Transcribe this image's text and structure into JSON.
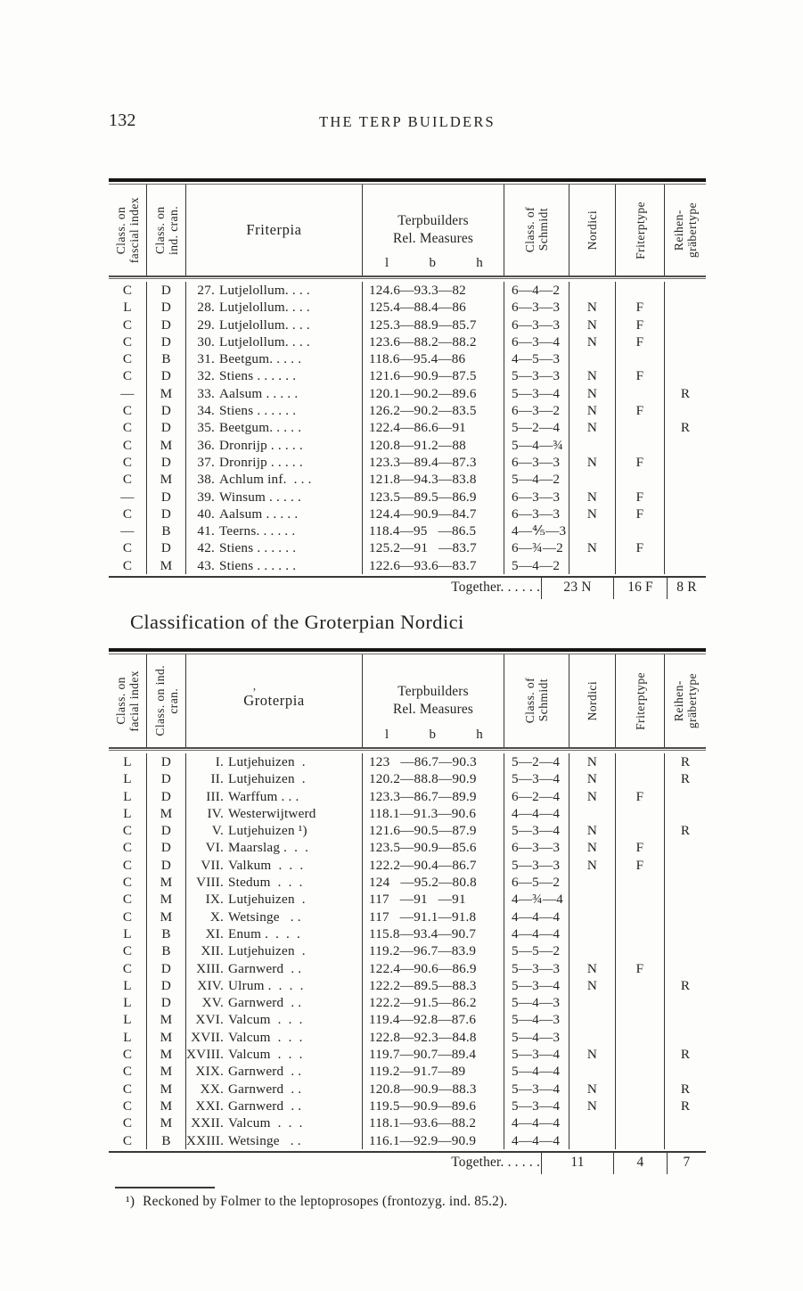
{
  "page": {
    "number": "132",
    "running_head": "THE TERP BUILDERS"
  },
  "section_heading": "Classification of the Groterpian Nordici",
  "footnote": {
    "marker": "¹)",
    "text": "Reckoned by Folmer to the leptoprosopes (frontozyg. ind. 85.2)."
  },
  "colors": {
    "paper": "#fdfdfb",
    "ink": "#242321",
    "rule_heavy": "#161513",
    "rule_light": "#6e6c68"
  },
  "row_fields": [
    "class_on_facial_index",
    "class_on_ind_cran",
    "number",
    "name",
    "terpbuilders_rel_measures_l_b_h",
    "class_of_schmidt",
    "nordici",
    "friterptype",
    "reihengraebertype"
  ],
  "tables": [
    {
      "id": "friterpia",
      "header": {
        "col_facial": [
          "Class. on",
          "fascial index"
        ],
        "col_cranial": [
          "Class. on",
          "ind. cran."
        ],
        "group_name": "Friterpia",
        "stray_mark": "",
        "measures_title": [
          "Terpbuilders",
          "Rel. Measures"
        ],
        "measure_vars": [
          "l",
          "b",
          "h"
        ],
        "col_schmidt": [
          "Class. of",
          "Schmidt"
        ],
        "col_nordici": "Nordici",
        "col_friterptype": "Friterptype",
        "col_reihen": [
          "Reihen-",
          "gräbertype"
        ]
      },
      "rows": [
        [
          "C",
          "D",
          "27.",
          "Lutjelollum. . . .",
          "124.6—93.3—82",
          "6—4—2",
          "",
          "",
          ""
        ],
        [
          "L",
          "D",
          "28.",
          "Lutjelollum. . . .",
          "125.4—88.4—86",
          "6—3—3",
          "N",
          "F",
          ""
        ],
        [
          "C",
          "D",
          "29.",
          "Lutjelollum. . . .",
          "125.3—88.9—85.7",
          "6—3—3",
          "N",
          "F",
          ""
        ],
        [
          "C",
          "D",
          "30.",
          "Lutjelollum. . . .",
          "123.6—88.2—88.2",
          "6—3—4",
          "N",
          "F",
          ""
        ],
        [
          "C",
          "B",
          "31.",
          "Beetgum. . . . .",
          "118.6—95.4—86",
          "4—5—3",
          "",
          "",
          ""
        ],
        [
          "C",
          "D",
          "32.",
          "Stiens . . . . . .",
          "121.6—90.9—87.5",
          "5—3—3",
          "N",
          "F",
          ""
        ],
        [
          "—",
          "M",
          "33.",
          "Aalsum . . . . .",
          "120.1—90.2—89.6",
          "5—3—4",
          "N",
          "",
          "R"
        ],
        [
          "C",
          "D",
          "34.",
          "Stiens . . . . . .",
          "126.2—90.2—83.5",
          "6—3—2",
          "N",
          "F",
          ""
        ],
        [
          "C",
          "D",
          "35.",
          "Beetgum. . . . .",
          "122.4—86.6—91",
          "5—2—4",
          "N",
          "",
          "R"
        ],
        [
          "C",
          "M",
          "36.",
          "Dronrijp . . . . .",
          "120.8—91.2—88",
          "5—4—¾",
          "",
          "",
          ""
        ],
        [
          "C",
          "D",
          "37.",
          "Dronrijp . . . . .",
          "123.3—89.4—87.3",
          "6—3—3",
          "N",
          "F",
          ""
        ],
        [
          "C",
          "M",
          "38.",
          "Achlum inf.  . . .",
          "121.8—94.3—83.8",
          "5—4—2",
          "",
          "",
          ""
        ],
        [
          "—",
          "D",
          "39.",
          "Winsum . . . . .",
          "123.5—89.5—86.9",
          "6—3—3",
          "N",
          "F",
          ""
        ],
        [
          "C",
          "D",
          "40.",
          "Aalsum . . . . .",
          "124.4—90.9—84.7",
          "6—3—3",
          "N",
          "F",
          ""
        ],
        [
          "—",
          "B",
          "41.",
          "Teerns. . . . . .",
          "118.4—95   —86.5",
          "4—⅘—3",
          "",
          "",
          ""
        ],
        [
          "C",
          "D",
          "42.",
          "Stiens . . . . . .",
          "125.2—91   —83.7",
          "6—¾—2",
          "N",
          "F",
          ""
        ],
        [
          "C",
          "M",
          "43.",
          "Stiens . . . . . .",
          "122.6—93.6—83.7",
          "5—4—2",
          "",
          "",
          ""
        ]
      ],
      "together": {
        "label": "Together. . . . . .",
        "values": [
          "23 N",
          "16 F",
          "8 R"
        ]
      }
    },
    {
      "id": "groterpia",
      "header": {
        "col_facial": [
          "Class. on",
          "facial index"
        ],
        "col_cranial": [
          "Class. on ind.",
          "cran."
        ],
        "group_name": "Groterpia",
        "stray_mark": "’",
        "measures_title": [
          "Terpbuilders",
          "Rel. Measures"
        ],
        "measure_vars": [
          "l",
          "b",
          "h"
        ],
        "col_schmidt": [
          "Class. of",
          "Schmidt"
        ],
        "col_nordici": "Nordici",
        "col_friterptype": "Friterptype",
        "col_reihen": [
          "Reihen-",
          "gräbertype"
        ]
      },
      "rows": [
        [
          "L",
          "D",
          "I.",
          "Lutjehuizen  .",
          "123   —86.7—90.3",
          "5—2—4",
          "N",
          "",
          "R"
        ],
        [
          "L",
          "D",
          "II.",
          "Lutjehuizen  .",
          "120.2—88.8—90.9",
          "5—3—4",
          "N",
          "",
          "R"
        ],
        [
          "L",
          "D",
          "III.",
          "Warffum . . .",
          "123.3—86.7—89.9",
          "6—2—4",
          "N",
          "F",
          ""
        ],
        [
          "L",
          "M",
          "IV.",
          "Westerwijtwerd",
          "118.1—91.3—90.6",
          "4—4—4",
          "",
          "",
          ""
        ],
        [
          "C",
          "D",
          "V.",
          "Lutjehuizen ¹)",
          "121.6—90.5—87.9",
          "5—3—4",
          "N",
          "",
          "R"
        ],
        [
          "C",
          "D",
          "VI.",
          "Maarslag .  .  .",
          "123.5—90.9—85.6",
          "6—3—3",
          "N",
          "F",
          ""
        ],
        [
          "C",
          "D",
          "VII.",
          "Valkum  .  .  .",
          "122.2—90.4—86.7",
          "5—3—3",
          "N",
          "F",
          ""
        ],
        [
          "C",
          "M",
          "VIII.",
          "Stedum  .  .  .",
          "124   —95.2—80.8",
          "6—5—2",
          "",
          "",
          ""
        ],
        [
          "C",
          "M",
          "IX.",
          "Lutjehuizen  .",
          "117   —91   —91",
          "4—¾—4",
          "",
          "",
          ""
        ],
        [
          "C",
          "M",
          "X.",
          "Wetsinge   . .",
          "117   —91.1—91.8",
          "4—4—4",
          "",
          "",
          ""
        ],
        [
          "L",
          "B",
          "XI.",
          "Enum .  .  .  .",
          "115.8—93.4—90.7",
          "4—4—4",
          "",
          "",
          ""
        ],
        [
          "C",
          "B",
          "XII.",
          "Lutjehuizen  .",
          "119.2—96.7—83.9",
          "5—5—2",
          "",
          "",
          ""
        ],
        [
          "C",
          "D",
          "XIII.",
          "Garnwerd  . .",
          "122.4—90.6—86.9",
          "5—3—3",
          "N",
          "F",
          ""
        ],
        [
          "L",
          "D",
          "XIV.",
          "Ulrum .  .  .  .",
          "122.2—89.5—88.3",
          "5—3—4",
          "N",
          "",
          "R"
        ],
        [
          "L",
          "D",
          "XV.",
          "Garnwerd  . .",
          "122.2—91.5—86.2",
          "5—4—3",
          "",
          "",
          ""
        ],
        [
          "L",
          "M",
          "XVI.",
          "Valcum  .  .  .",
          "119.4—92.8—87.6",
          "5—4—3",
          "",
          "",
          ""
        ],
        [
          "L",
          "M",
          "XVII.",
          "Valcum  .  .  .",
          "122.8—92.3—84.8",
          "5—4—3",
          "",
          "",
          ""
        ],
        [
          "C",
          "M",
          "XVIII.",
          "Valcum  .  .  .",
          "119.7—90.7—89.4",
          "5—3—4",
          "N",
          "",
          "R"
        ],
        [
          "C",
          "M",
          "XIX.",
          "Garnwerd  . .",
          "119.2—91.7—89",
          "5—4—4",
          "",
          "",
          ""
        ],
        [
          "C",
          "M",
          "XX.",
          "Garnwerd  . .",
          "120.8—90.9—88.3",
          "5—3—4",
          "N",
          "",
          "R"
        ],
        [
          "C",
          "M",
          "XXI.",
          "Garnwerd  . .",
          "119.5—90.9—89.6",
          "5—3—4",
          "N",
          "",
          "R"
        ],
        [
          "C",
          "M",
          "XXII.",
          "Valcum  .  .  .",
          "118.1—93.6—88.2",
          "4—4—4",
          "",
          "",
          ""
        ],
        [
          "C",
          "B",
          "XXIII.",
          "Wetsinge   . .",
          "116.1—92.9—90.9",
          "4—4—4",
          "",
          "",
          ""
        ]
      ],
      "together": {
        "label": "Together. . . . . .",
        "values": [
          "11",
          "4",
          "7"
        ]
      }
    }
  ]
}
